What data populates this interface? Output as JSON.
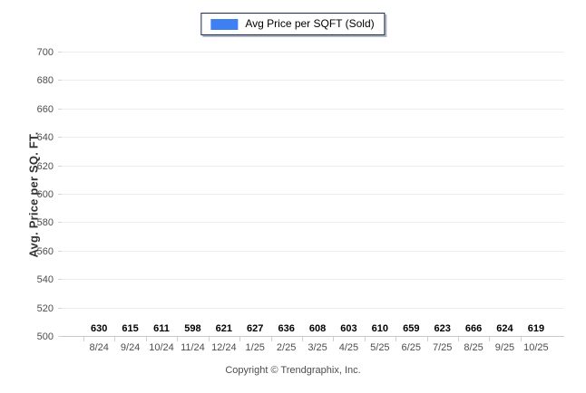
{
  "chart_data": {
    "type": "bar",
    "title": "",
    "xlabel": "",
    "ylabel": "Avg. Price per SQ. FT.",
    "categories": [
      "8/24",
      "9/24",
      "10/24",
      "11/24",
      "12/24",
      "1/25",
      "2/25",
      "3/25",
      "4/25",
      "5/25",
      "6/25",
      "7/25",
      "8/25",
      "9/25",
      "10/25"
    ],
    "series": [
      {
        "name": "Avg Price per SQFT (Sold)",
        "values": [
          630,
          615,
          611,
          598,
          621,
          627,
          636,
          608,
          603,
          610,
          659,
          623,
          666,
          624,
          619
        ]
      }
    ],
    "ylim": [
      500,
      700
    ],
    "ytick_step": 20,
    "grid": "horizontal",
    "legend_position": "top-center",
    "value_labels": "above-bars"
  },
  "legend": {
    "label": "Avg Price per SQFT (Sold)",
    "swatch_color": "#3e7ff2"
  },
  "footer": {
    "text": "Copyright © Trendgraphix, Inc."
  },
  "colors": {
    "bar": "#3e7ff2",
    "grid": "#ededed",
    "baseline": "#c8c8c8",
    "tick_label": "#4d4d4d",
    "value_label": "#000000",
    "legend_border": "#1b2b4d",
    "background": "#ffffff"
  }
}
